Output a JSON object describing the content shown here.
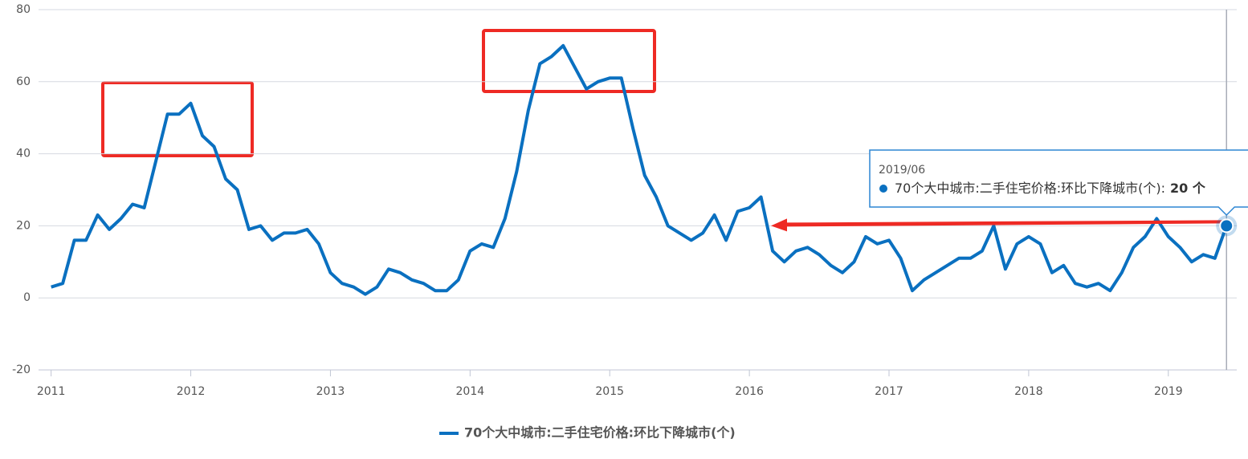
{
  "chart_data": {
    "type": "line",
    "x": [
      "2011/01",
      "2011/02",
      "2011/03",
      "2011/04",
      "2011/05",
      "2011/06",
      "2011/07",
      "2011/08",
      "2011/09",
      "2011/10",
      "2011/11",
      "2011/12",
      "2012/01",
      "2012/02",
      "2012/03",
      "2012/04",
      "2012/05",
      "2012/06",
      "2012/07",
      "2012/08",
      "2012/09",
      "2012/10",
      "2012/11",
      "2012/12",
      "2013/01",
      "2013/02",
      "2013/03",
      "2013/04",
      "2013/05",
      "2013/06",
      "2013/07",
      "2013/08",
      "2013/09",
      "2013/10",
      "2013/11",
      "2013/12",
      "2014/01",
      "2014/02",
      "2014/03",
      "2014/04",
      "2014/05",
      "2014/06",
      "2014/07",
      "2014/08",
      "2014/09",
      "2014/10",
      "2014/11",
      "2014/12",
      "2015/01",
      "2015/02",
      "2015/03",
      "2015/04",
      "2015/05",
      "2015/06",
      "2015/07",
      "2015/08",
      "2015/09",
      "2015/10",
      "2015/11",
      "2015/12",
      "2016/01",
      "2016/02",
      "2016/03",
      "2016/04",
      "2016/05",
      "2016/06",
      "2016/07",
      "2016/08",
      "2016/09",
      "2016/10",
      "2016/11",
      "2016/12",
      "2017/01",
      "2017/02",
      "2017/03",
      "2017/04",
      "2017/05",
      "2017/06",
      "2017/07",
      "2017/08",
      "2017/09",
      "2017/10",
      "2017/11",
      "2017/12",
      "2018/01",
      "2018/02",
      "2018/03",
      "2018/04",
      "2018/05",
      "2018/06",
      "2018/07",
      "2018/08",
      "2018/09",
      "2018/10",
      "2018/11",
      "2018/12",
      "2019/01",
      "2019/02",
      "2019/03",
      "2019/04",
      "2019/05",
      "2019/06"
    ],
    "series": [
      {
        "name": "70个大中城市:二手住宅价格:环比下降城市(个)",
        "color": "#0a70c0",
        "values": [
          3,
          4,
          16,
          16,
          23,
          19,
          22,
          26,
          25,
          38,
          51,
          51,
          54,
          45,
          42,
          33,
          30,
          19,
          20,
          16,
          18,
          18,
          19,
          15,
          7,
          4,
          3,
          1,
          3,
          8,
          7,
          5,
          4,
          2,
          2,
          5,
          13,
          15,
          14,
          22,
          35,
          52,
          65,
          67,
          70,
          64,
          58,
          60,
          61,
          61,
          47,
          34,
          28,
          20,
          18,
          16,
          18,
          23,
          16,
          24,
          25,
          28,
          13,
          10,
          13,
          14,
          12,
          9,
          7,
          10,
          17,
          15,
          16,
          11,
          2,
          5,
          7,
          9,
          11,
          11,
          13,
          20,
          8,
          15,
          17,
          15,
          7,
          9,
          4,
          3,
          4,
          2,
          7,
          14,
          17,
          22,
          17,
          14,
          10,
          12,
          11,
          20
        ]
      }
    ],
    "xlim": [
      2010.91,
      2019.49
    ],
    "xticks": [
      2011,
      2012,
      2013,
      2014,
      2015,
      2016,
      2017,
      2018,
      2019
    ],
    "ylim": [
      -20,
      80
    ],
    "yticks": [
      -20,
      0,
      20,
      40,
      60,
      80
    ],
    "grid": true,
    "tooltip": {
      "title": "2019/06",
      "label": "70个大中城市:二手住宅价格:环比下降城市(个):",
      "value_label": "20 个"
    }
  }
}
